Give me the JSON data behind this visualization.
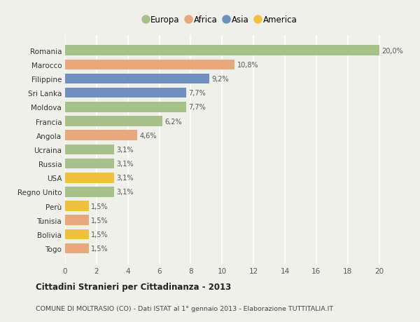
{
  "categories": [
    "Togo",
    "Bolivia",
    "Tunisia",
    "Perù",
    "Regno Unito",
    "USA",
    "Russia",
    "Ucraina",
    "Angola",
    "Francia",
    "Moldova",
    "Sri Lanka",
    "Filippine",
    "Marocco",
    "Romania"
  ],
  "values": [
    1.5,
    1.5,
    1.5,
    1.5,
    3.1,
    3.1,
    3.1,
    3.1,
    4.6,
    6.2,
    7.7,
    7.7,
    9.2,
    10.8,
    20.0
  ],
  "bar_colors": [
    "#e8a87c",
    "#f0c040",
    "#e8a87c",
    "#f0c040",
    "#a8c08a",
    "#f0c040",
    "#a8c08a",
    "#a8c08a",
    "#e8a87c",
    "#a8c08a",
    "#a8c08a",
    "#7090c0",
    "#7090c0",
    "#e8a87c",
    "#a8c08a"
  ],
  "labels": [
    "1,5%",
    "1,5%",
    "1,5%",
    "1,5%",
    "3,1%",
    "3,1%",
    "3,1%",
    "3,1%",
    "4,6%",
    "6,2%",
    "7,7%",
    "7,7%",
    "9,2%",
    "10,8%",
    "20,0%"
  ],
  "legend": [
    {
      "label": "Europa",
      "color": "#a8c08a"
    },
    {
      "label": "Africa",
      "color": "#e8a87c"
    },
    {
      "label": "Asia",
      "color": "#7090c0"
    },
    {
      "label": "America",
      "color": "#f0c040"
    }
  ],
  "xlim": [
    0,
    21
  ],
  "xticks": [
    0,
    2,
    4,
    6,
    8,
    10,
    12,
    14,
    16,
    18,
    20
  ],
  "title": "Cittadini Stranieri per Cittadinanza - 2013",
  "subtitle": "COMUNE DI MOLTRASIO (CO) - Dati ISTAT al 1° gennaio 2013 - Elaborazione TUTTITALIA.IT",
  "bg_color": "#f0f0eb",
  "grid_color": "#ffffff",
  "bar_height": 0.72
}
